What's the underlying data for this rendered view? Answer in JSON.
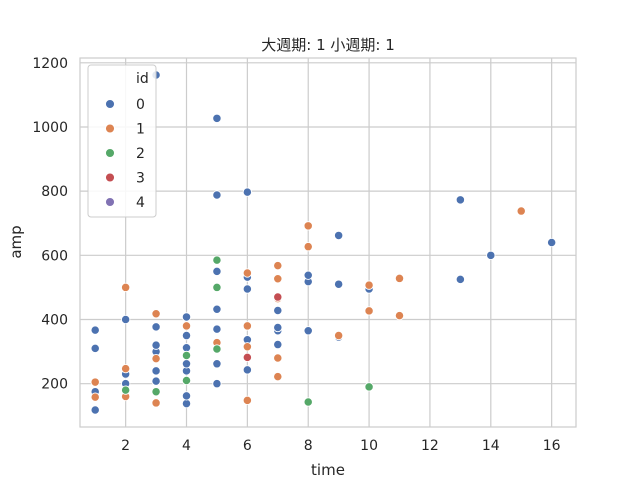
{
  "chart_data": {
    "type": "scatter",
    "title": "大週期: 1 小週期: 1",
    "xlabel": "time",
    "ylabel": "amp",
    "xlim": [
      0.5,
      16.8
    ],
    "ylim": [
      65,
      1215
    ],
    "xticks": [
      2,
      4,
      6,
      8,
      10,
      12,
      14,
      16
    ],
    "yticks": [
      200,
      400,
      600,
      800,
      1000,
      1200
    ],
    "grid": true,
    "legend": {
      "title": "id",
      "placement": "top-left"
    },
    "series": [
      {
        "name": "0",
        "color": "#4c72b0",
        "points": [
          [
            1,
            118
          ],
          [
            1,
            175
          ],
          [
            1,
            310
          ],
          [
            1,
            367
          ],
          [
            2,
            162
          ],
          [
            2,
            200
          ],
          [
            2,
            230
          ],
          [
            2,
            400
          ],
          [
            3,
            208
          ],
          [
            3,
            240
          ],
          [
            3,
            300
          ],
          [
            3,
            320
          ],
          [
            3,
            377
          ],
          [
            3,
            1162
          ],
          [
            4,
            138
          ],
          [
            4,
            162
          ],
          [
            4,
            240
          ],
          [
            4,
            262
          ],
          [
            4,
            312
          ],
          [
            4,
            350
          ],
          [
            4,
            408
          ],
          [
            5,
            200
          ],
          [
            5,
            262
          ],
          [
            5,
            370
          ],
          [
            5,
            432
          ],
          [
            5,
            550
          ],
          [
            5,
            788
          ],
          [
            5,
            1027
          ],
          [
            6,
            243
          ],
          [
            6,
            337
          ],
          [
            6,
            495
          ],
          [
            6,
            532
          ],
          [
            6,
            797
          ],
          [
            7,
            322
          ],
          [
            7,
            365
          ],
          [
            7,
            375
          ],
          [
            7,
            428
          ],
          [
            8,
            365
          ],
          [
            8,
            518
          ],
          [
            8,
            538
          ],
          [
            9,
            345
          ],
          [
            9,
            510
          ],
          [
            9,
            662
          ],
          [
            10,
            495
          ],
          [
            13,
            525
          ],
          [
            13,
            773
          ],
          [
            14,
            600
          ],
          [
            16,
            640
          ]
        ]
      },
      {
        "name": "1",
        "color": "#dd8452",
        "points": [
          [
            1,
            158
          ],
          [
            1,
            205
          ],
          [
            2,
            160
          ],
          [
            2,
            247
          ],
          [
            2,
            500
          ],
          [
            3,
            140
          ],
          [
            3,
            278
          ],
          [
            3,
            418
          ],
          [
            4,
            380
          ],
          [
            5,
            328
          ],
          [
            6,
            148
          ],
          [
            6,
            315
          ],
          [
            6,
            380
          ],
          [
            6,
            545
          ],
          [
            7,
            222
          ],
          [
            7,
            280
          ],
          [
            7,
            465
          ],
          [
            7,
            527
          ],
          [
            7,
            568
          ],
          [
            8,
            627
          ],
          [
            8,
            692
          ],
          [
            9,
            350
          ],
          [
            10,
            427
          ],
          [
            10,
            507
          ],
          [
            11,
            412
          ],
          [
            11,
            528
          ],
          [
            15,
            738
          ]
        ]
      },
      {
        "name": "2",
        "color": "#55a868",
        "points": [
          [
            2,
            180
          ],
          [
            3,
            175
          ],
          [
            4,
            210
          ],
          [
            4,
            288
          ],
          [
            5,
            308
          ],
          [
            5,
            500
          ],
          [
            5,
            585
          ],
          [
            8,
            143
          ],
          [
            10,
            190
          ]
        ]
      },
      {
        "name": "3",
        "color": "#c44e52",
        "points": [
          [
            6,
            282
          ],
          [
            7,
            470
          ]
        ]
      },
      {
        "name": "4",
        "color": "#8172b3",
        "points": []
      }
    ]
  }
}
